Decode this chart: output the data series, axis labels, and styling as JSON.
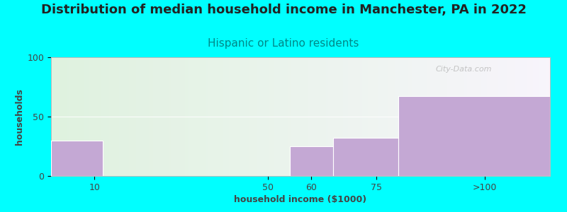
{
  "title": "Distribution of median household income in Manchester, PA in 2022",
  "subtitle": "Hispanic or Latino residents",
  "xlabel": "household income ($1000)",
  "ylabel": "households",
  "background_color": "#00FFFF",
  "bar_color": "#c4a8d4",
  "watermark": "City-Data.com",
  "categories": [
    "10",
    "50",
    "60",
    "75",
    ">100"
  ],
  "bar_lefts": [
    0,
    12,
    55,
    65,
    80
  ],
  "bar_rights": [
    12,
    55,
    65,
    80,
    115
  ],
  "bar_heights": [
    30,
    0,
    25,
    32,
    67
  ],
  "ylim": [
    0,
    100
  ],
  "xlim": [
    0,
    115
  ],
  "xtick_positions": [
    10,
    50,
    60,
    75,
    100
  ],
  "xtick_labels": [
    "10",
    "50",
    "60",
    "75",
    ">100"
  ],
  "yticks": [
    0,
    50,
    100
  ],
  "title_fontsize": 13,
  "subtitle_fontsize": 11,
  "axis_label_fontsize": 9,
  "tick_fontsize": 9,
  "title_color": "#222222",
  "subtitle_color": "#008888",
  "axis_label_color": "#444444",
  "tick_color": "#444444"
}
